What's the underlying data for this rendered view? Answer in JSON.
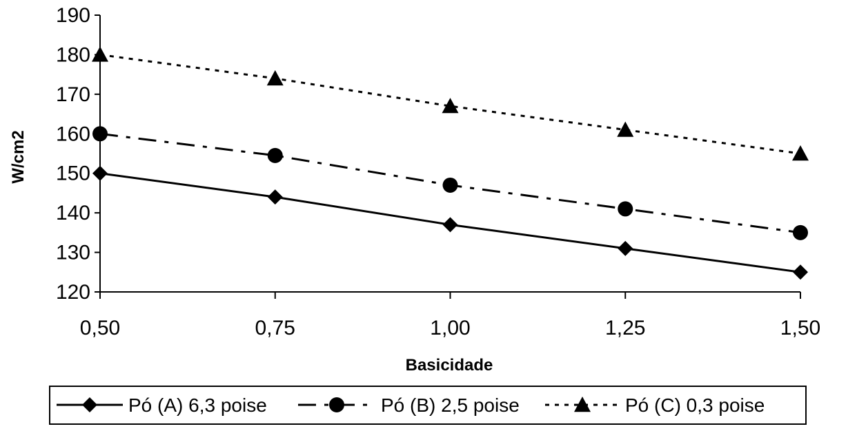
{
  "chart_data": {
    "type": "line",
    "title": "",
    "xlabel": "Basicidade",
    "ylabel": "W/cm2",
    "x": [
      "0,50",
      "0,75",
      "1,00",
      "1,25",
      "1,50"
    ],
    "ylim": [
      120,
      190
    ],
    "yticks": [
      120,
      130,
      140,
      150,
      160,
      170,
      180,
      190
    ],
    "y_tick_labels": [
      "120",
      "130",
      "140",
      "150",
      "160",
      "170",
      "180",
      "190"
    ],
    "grid": false,
    "legend_position": "bottom",
    "series": [
      {
        "name": "Pó (A) 6,3 poise",
        "marker": "diamond",
        "line_style": "solid",
        "values": [
          150,
          144,
          137,
          131,
          125
        ]
      },
      {
        "name": "Pó (B) 2,5 poise",
        "marker": "circle",
        "line_style": "dash-dot",
        "values": [
          160,
          154.5,
          147,
          141,
          135
        ]
      },
      {
        "name": "Pó (C) 0,3 poise",
        "marker": "triangle",
        "line_style": "dotted",
        "values": [
          180,
          174,
          167,
          161,
          155
        ]
      }
    ]
  }
}
